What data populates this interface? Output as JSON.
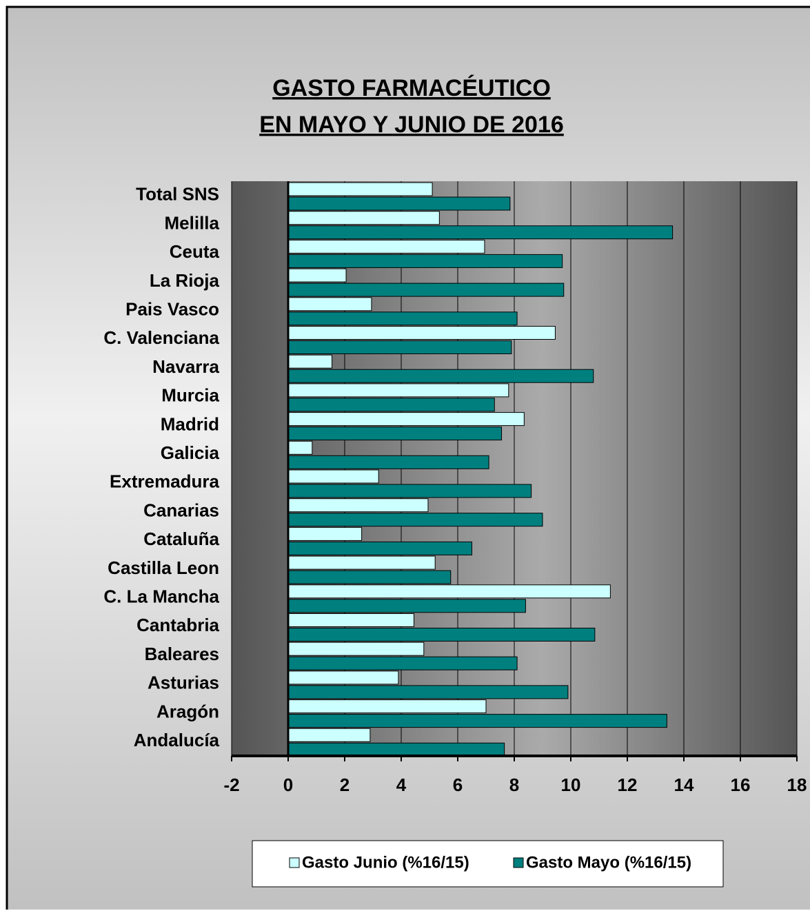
{
  "chart_data": {
    "type": "hbar",
    "title": "GASTO FARMACÉUTICO",
    "subtitle": "EN MAYO Y JUNIO DE 2016",
    "categories": [
      "Total SNS",
      "Melilla",
      "Ceuta",
      "La Rioja",
      "Pais Vasco",
      "C. Valenciana",
      "Navarra",
      "Murcia",
      "Madrid",
      "Galicia",
      "Extremadura",
      "Canarias",
      "Cataluña",
      "Castilla Leon",
      "C. La Mancha",
      "Cantabria",
      "Baleares",
      "Asturias",
      "Aragón",
      "Andalucía"
    ],
    "series": [
      {
        "name": "Gasto Junio  (%16/15)",
        "color": "#ccffff",
        "values": [
          5.1,
          5.35,
          6.95,
          2.05,
          2.95,
          9.45,
          1.55,
          7.8,
          8.35,
          0.85,
          3.2,
          4.95,
          2.6,
          5.2,
          11.4,
          4.45,
          4.8,
          3.9,
          7.0,
          2.9
        ]
      },
      {
        "name": "Gasto Mayo (%16/15)",
        "color": "#007f7f",
        "values": [
          7.85,
          13.6,
          9.7,
          9.75,
          8.1,
          7.9,
          10.8,
          7.3,
          7.55,
          7.1,
          8.6,
          9.0,
          6.5,
          5.75,
          8.4,
          10.85,
          8.1,
          9.9,
          13.4,
          7.65
        ]
      }
    ],
    "xlim": [
      -2,
      18
    ],
    "xticks": [
      -2,
      0,
      2,
      4,
      6,
      8,
      10,
      12,
      14,
      16,
      18
    ],
    "grid": true,
    "legend": "bottom"
  }
}
